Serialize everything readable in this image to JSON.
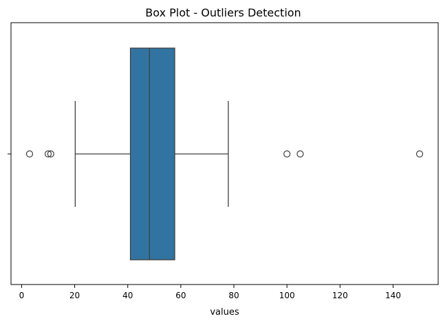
{
  "chart_data": {
    "type": "box",
    "orientation": "horizontal",
    "title": "Box Plot - Outliers Detection",
    "xlabel": "values",
    "ylabel": "",
    "xlim": [
      -4,
      157
    ],
    "xticks": [
      0,
      20,
      40,
      60,
      80,
      100,
      120,
      140
    ],
    "grid": false,
    "box": {
      "whisker_low": 20.2,
      "q1": 41,
      "median": 48.2,
      "q3": 57.7,
      "whisker_high": 77.9
    },
    "outliers": [
      3,
      10,
      11,
      100,
      105,
      150
    ],
    "colors": {
      "box_fill": "#3274a1",
      "line": "#3f3f3f"
    }
  }
}
